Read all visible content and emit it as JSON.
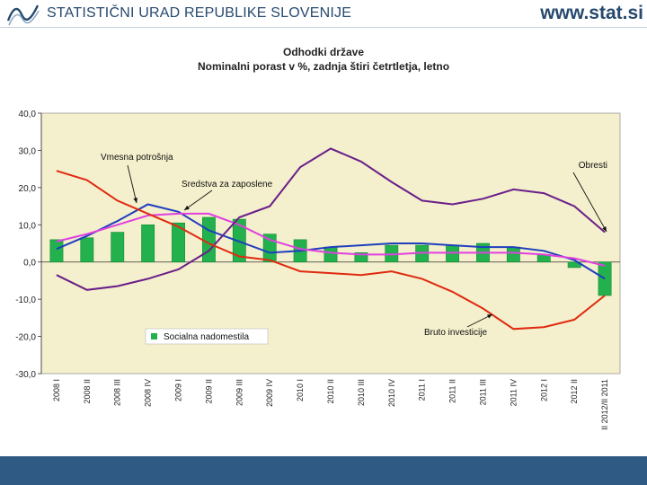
{
  "header": {
    "org_name": "STATISTIČNI URAD REPUBLIKE SLOVENIJE",
    "url": "www.stat.si"
  },
  "colors": {
    "plot_bg": "#f4efcc",
    "bars": "#22b14c",
    "vmesna": "#1f3fbf",
    "sredstva": "#e040e0",
    "obresti": "#6a1f8a",
    "bruto": "#e02a10",
    "footer": "#2e5a84"
  },
  "chart_data": {
    "type": "bar",
    "title": "Odhodki države",
    "subtitle": "Nominalni porast v %, zadnja štiri četrtletja, letno",
    "ylim": [
      -30,
      40
    ],
    "yticks": [
      "40,0",
      "30,0",
      "20,0",
      "10,0",
      "0,0",
      "-10,0",
      "-20,0",
      "-30,0"
    ],
    "categories": [
      "2008 I",
      "2008 II",
      "2008 III",
      "2008 IV",
      "2009 I",
      "2009 II",
      "2009 III",
      "2009 IV",
      "2010 I",
      "2010 II",
      "2010 III",
      "2010 IV",
      "2011 I",
      "2011 II",
      "2011 III",
      "2011 IV",
      "2012 I",
      "2012 II",
      "II 2012/II 2011"
    ],
    "series": [
      {
        "name": "Socialna nadomestila",
        "kind": "bar",
        "values": [
          6.0,
          6.5,
          8.0,
          10.0,
          10.5,
          12.0,
          11.5,
          7.5,
          6.0,
          4.0,
          2.5,
          4.5,
          4.5,
          4.5,
          5.0,
          4.0,
          2.0,
          -1.5,
          -9.0
        ]
      },
      {
        "name": "Vmesna potrošnja",
        "kind": "line",
        "values": [
          3.5,
          7.0,
          11.0,
          15.5,
          13.5,
          8.5,
          5.5,
          2.5,
          3.0,
          4.0,
          4.5,
          5.0,
          5.0,
          4.5,
          4.0,
          4.0,
          3.0,
          0.5,
          -4.5
        ]
      },
      {
        "name": "Sredstva za zaposlene",
        "kind": "line",
        "values": [
          5.5,
          7.5,
          10.0,
          12.5,
          13.0,
          13.0,
          10.0,
          6.0,
          3.5,
          2.5,
          2.0,
          2.0,
          2.5,
          2.5,
          2.5,
          2.5,
          2.0,
          1.0,
          -1.0
        ]
      },
      {
        "name": "Obresti",
        "kind": "line",
        "values": [
          -3.5,
          -7.5,
          -6.5,
          -4.5,
          -2.0,
          3.0,
          12.0,
          15.0,
          25.5,
          30.5,
          27.0,
          21.5,
          16.5,
          15.5,
          17.0,
          19.5,
          18.5,
          15.0,
          8.0
        ]
      },
      {
        "name": "Bruto investicije",
        "kind": "line",
        "values": [
          24.5,
          22.0,
          16.5,
          13.0,
          9.5,
          5.0,
          1.5,
          0.5,
          -2.5,
          -3.0,
          -3.5,
          -2.5,
          -4.5,
          -8.0,
          -12.5,
          -18.0,
          -17.5,
          -15.5,
          -9.0
        ]
      }
    ],
    "annotations": [
      "Vmesna potrošnja",
      "Sredstva za zaposlene",
      "Obresti",
      "Bruto investicije",
      "Socialna nadomestila"
    ]
  }
}
